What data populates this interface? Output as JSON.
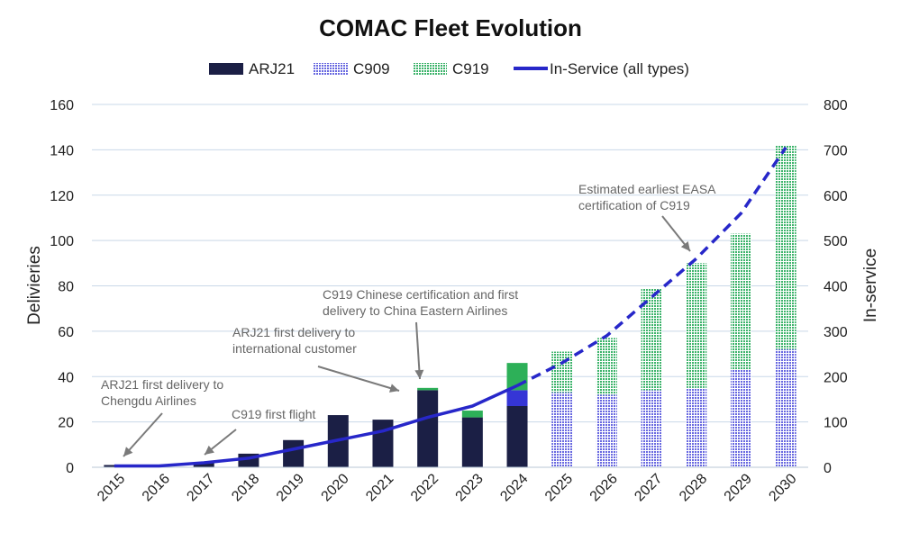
{
  "chart_data": {
    "type": "bar",
    "title": "COMAC Fleet Evolution",
    "ylabel": "Delivieries",
    "y2label": "In-service",
    "ylim": [
      0,
      160
    ],
    "y2lim": [
      0,
      800
    ],
    "yticks": [
      "0",
      "20",
      "40",
      "60",
      "80",
      "100",
      "120",
      "140",
      "160"
    ],
    "y2ticks": [
      "0",
      "100",
      "200",
      "300",
      "400",
      "500",
      "600",
      "700",
      "800"
    ],
    "grid": true,
    "legend_position": "top",
    "categories": [
      "2015",
      "2016",
      "2017",
      "2018",
      "2019",
      "2020",
      "2021",
      "2022",
      "2023",
      "2024",
      "2025",
      "2026",
      "2027",
      "2028",
      "2029",
      "2030"
    ],
    "bars": [
      {
        "name": "ARJ21",
        "color": "#1b1f45",
        "estimate_color": "#1b1f45",
        "values": [
          1,
          0,
          2,
          6,
          12,
          23,
          21,
          34,
          22,
          27,
          0,
          0,
          0,
          0,
          0,
          0
        ]
      },
      {
        "name": "C909",
        "color": "#3535d6",
        "estimate_color": "#6868e0",
        "values": [
          0,
          0,
          0,
          0,
          0,
          0,
          0,
          0,
          0,
          7,
          33,
          32,
          34,
          35,
          43,
          52
        ]
      },
      {
        "name": "C919",
        "color": "#2db058",
        "estimate_color": "#3cb36a",
        "values": [
          0,
          0,
          0,
          0,
          0,
          0,
          0,
          1,
          3,
          12,
          18,
          25,
          45,
          55,
          60,
          90
        ]
      }
    ],
    "line": {
      "name": "In-Service (all types)",
      "color": "#2727c9",
      "axis": "right",
      "values": [
        3,
        3,
        10,
        20,
        40,
        60,
        80,
        110,
        135,
        180,
        230,
        290,
        375,
        460,
        560,
        705
      ],
      "estimate_from_index": 9
    },
    "estimate_from_index": 10,
    "annotations": [
      {
        "lines": [
          "ARJ21 first delivery to",
          "Chengdu Airlines"
        ],
        "target_index": 0,
        "target_value": 1
      },
      {
        "lines": [
          "C919 first flight"
        ],
        "target_index": 2,
        "target_value": 2
      },
      {
        "lines": [
          "ARJ21 first delivery to",
          "international customer"
        ],
        "target_index": 6.65,
        "target_value": 34
      },
      {
        "lines": [
          "C919 Chinese certification and first",
          "delivery to China Eastern Airlines"
        ],
        "target_index": 7,
        "target_value": 40
      },
      {
        "lines": [
          "Estimated earliest EASA",
          "certification of C919"
        ],
        "target_index": 13,
        "target_value": 95
      }
    ]
  }
}
